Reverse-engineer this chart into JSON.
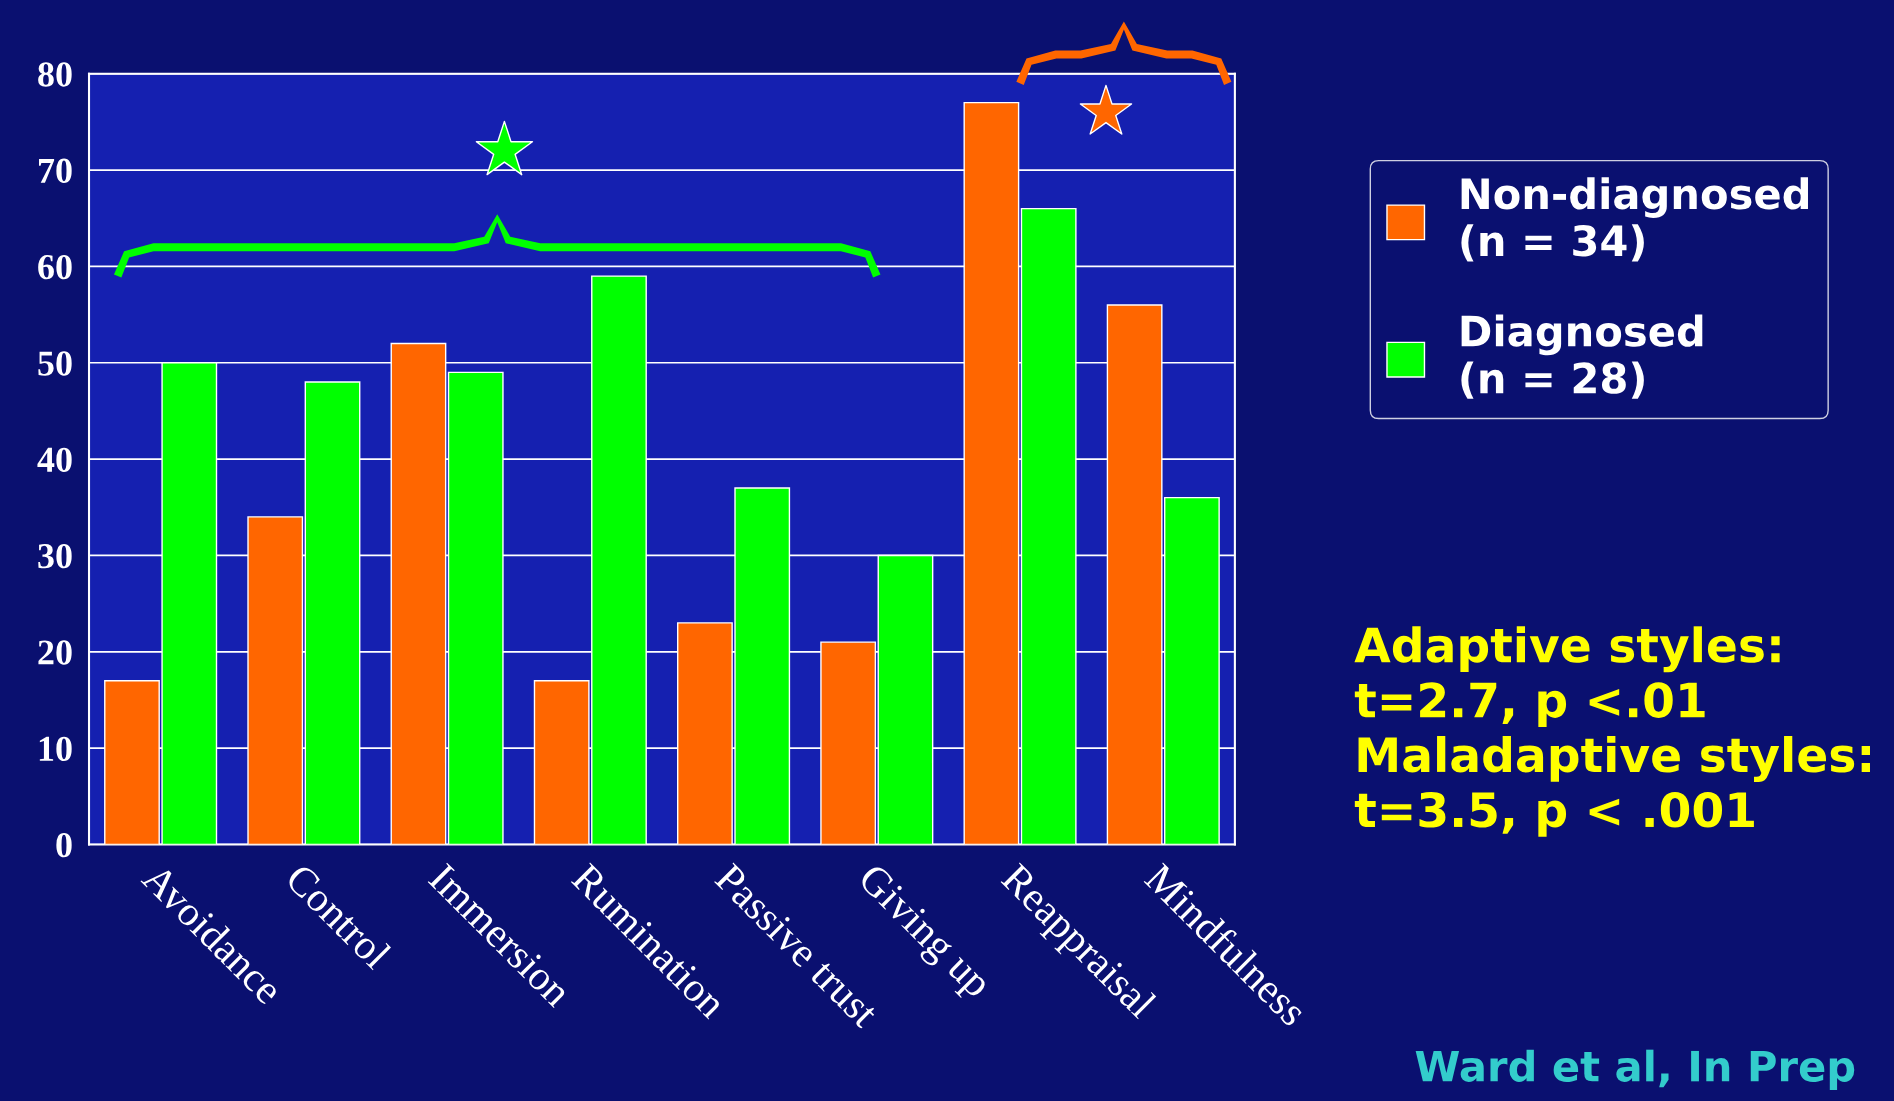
{
  "chart_data": {
    "type": "bar",
    "categories": [
      "Avoidance",
      "Control",
      "Immersion",
      "Rumination",
      "Passive trust",
      "Giving up",
      "Reappraisal",
      "Mindfulness"
    ],
    "series": [
      {
        "name": "Non-diagnosed\n(n = 34)",
        "color": "#ff6600",
        "values": [
          17,
          34,
          52,
          17,
          23,
          21,
          77,
          56
        ]
      },
      {
        "name": "Diagnosed\n(n = 28)",
        "color": "#00ff00",
        "values": [
          50,
          48,
          49,
          59,
          37,
          30,
          66,
          36
        ]
      }
    ],
    "ylim": [
      0,
      80
    ],
    "yticks": [
      0,
      10,
      20,
      30,
      40,
      50,
      60,
      70,
      80
    ],
    "grid": "y",
    "legend": "right",
    "annotations": [
      "Adaptive styles:\nt=2.7, p <.01\nMaladaptive styles:\nt=3.5, p < .001",
      "Ward et al, In Prep"
    ]
  }
}
